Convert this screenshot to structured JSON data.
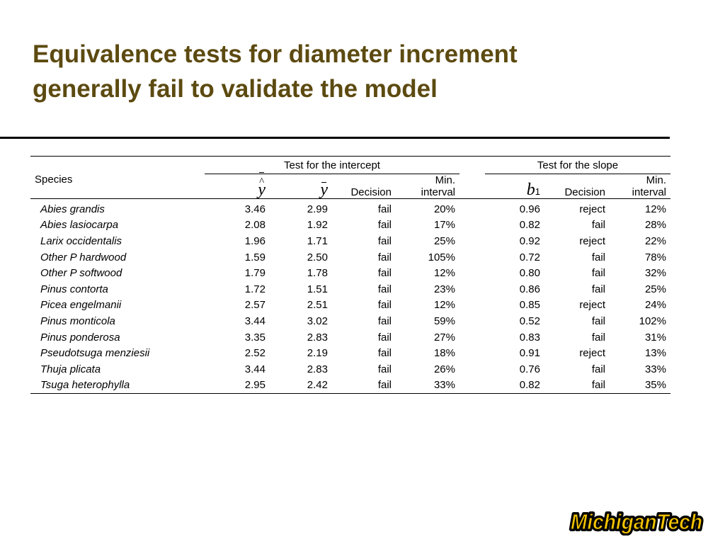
{
  "slide": {
    "title_line1": "Equivalence tests for diameter increment",
    "title_line2": "generally fail to validate the model",
    "title_color": "#5c4a10"
  },
  "table": {
    "species_header": "Species",
    "intercept_group": "Test for the intercept",
    "slope_group": "Test for the slope",
    "col_yhat_bar": "ŷ̄",
    "col_ybar": "ȳ",
    "col_decision": "Decision",
    "col_min_interval_line1": "Min.",
    "col_min_interval_line2": "interval",
    "col_b": "b",
    "col_b_sub": "1",
    "rows": [
      {
        "species": "Abies grandis",
        "yhat": "3.46",
        "ybar": "2.99",
        "dec_i": "fail",
        "min_i": "20%",
        "b1": "0.96",
        "dec_s": "reject",
        "min_s": "12%"
      },
      {
        "species": "Abies lasiocarpa",
        "yhat": "2.08",
        "ybar": "1.92",
        "dec_i": "fail",
        "min_i": "17%",
        "b1": "0.82",
        "dec_s": "fail",
        "min_s": "28%"
      },
      {
        "species": "Larix occidentalis",
        "yhat": "1.96",
        "ybar": "1.71",
        "dec_i": "fail",
        "min_i": "25%",
        "b1": "0.92",
        "dec_s": "reject",
        "min_s": "22%"
      },
      {
        "species": "Other P hardwood",
        "yhat": "1.59",
        "ybar": "2.50",
        "dec_i": "fail",
        "min_i": "105%",
        "b1": "0.72",
        "dec_s": "fail",
        "min_s": "78%"
      },
      {
        "species": "Other P softwood",
        "yhat": "1.79",
        "ybar": "1.78",
        "dec_i": "fail",
        "min_i": "12%",
        "b1": "0.80",
        "dec_s": "fail",
        "min_s": "32%"
      },
      {
        "species": "Pinus contorta",
        "yhat": "1.72",
        "ybar": "1.51",
        "dec_i": "fail",
        "min_i": "23%",
        "b1": "0.86",
        "dec_s": "fail",
        "min_s": "25%"
      },
      {
        "species": "Picea engelmanii",
        "yhat": "2.57",
        "ybar": "2.51",
        "dec_i": "fail",
        "min_i": "12%",
        "b1": "0.85",
        "dec_s": "reject",
        "min_s": "24%"
      },
      {
        "species": "Pinus monticola",
        "yhat": "3.44",
        "ybar": "3.02",
        "dec_i": "fail",
        "min_i": "59%",
        "b1": "0.52",
        "dec_s": "fail",
        "min_s": "102%"
      },
      {
        "species": "Pinus ponderosa",
        "yhat": "3.35",
        "ybar": "2.83",
        "dec_i": "fail",
        "min_i": "27%",
        "b1": "0.83",
        "dec_s": "fail",
        "min_s": "31%"
      },
      {
        "species": "Pseudotsuga menziesii",
        "yhat": "2.52",
        "ybar": "2.19",
        "dec_i": "fail",
        "min_i": "18%",
        "b1": "0.91",
        "dec_s": "reject",
        "min_s": "13%"
      },
      {
        "species": "Thuja plicata",
        "yhat": "3.44",
        "ybar": "2.83",
        "dec_i": "fail",
        "min_i": "26%",
        "b1": "0.76",
        "dec_s": "fail",
        "min_s": "33%"
      },
      {
        "species": "Tsuga heterophylla",
        "yhat": "2.95",
        "ybar": "2.42",
        "dec_i": "fail",
        "min_i": "33%",
        "b1": "0.82",
        "dec_s": "fail",
        "min_s": "35%"
      }
    ]
  },
  "logo": {
    "text": "MichiganTech",
    "fill_color": "#f5c400",
    "outline_color": "#000000"
  }
}
